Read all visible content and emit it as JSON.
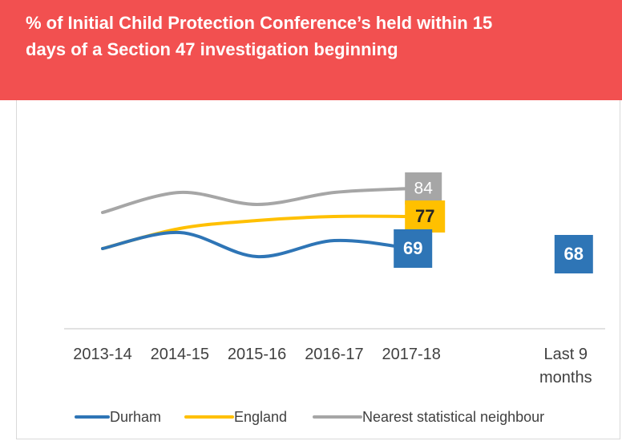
{
  "chart_data": {
    "type": "line",
    "title": "% of Initial Child Protection Conference’s held within 15 days of a Section 47 investigation beginning",
    "categories": [
      "2013-14",
      "2014-15",
      "2015-16",
      "2016-17",
      "2017-18",
      null,
      "Last 9 months"
    ],
    "series": [
      {
        "name": "Durham",
        "color": "#2e75b6",
        "values": [
          69,
          73,
          67,
          71,
          69,
          null,
          68
        ]
      },
      {
        "name": "England",
        "color": "#ffc000",
        "values": [
          69,
          74,
          76,
          77,
          77,
          null,
          null
        ]
      },
      {
        "name": "Nearest statistical neighbour",
        "color": "#a6a6a6",
        "values": [
          78,
          83,
          80,
          83,
          84,
          null,
          null
        ]
      }
    ]
  }
}
